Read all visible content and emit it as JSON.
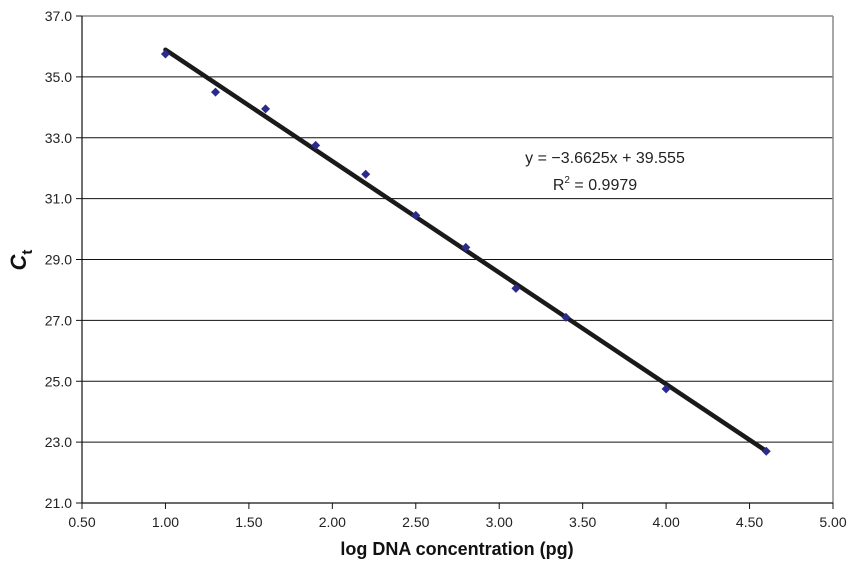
{
  "chart_data": {
    "type": "scatter",
    "title": "",
    "xlabel": "log DNA concentration (pg)",
    "ylabel_main": "C",
    "ylabel_sub": "t",
    "xlim": [
      0.5,
      5.0
    ],
    "ylim": [
      21.0,
      37.0
    ],
    "x_ticks": [
      "0.50",
      "1.00",
      "1.50",
      "2.00",
      "2.50",
      "3.00",
      "3.50",
      "4.00",
      "4.50",
      "5.00"
    ],
    "y_ticks": [
      "21.0",
      "23.0",
      "25.0",
      "27.0",
      "29.0",
      "31.0",
      "33.0",
      "35.0",
      "37.0"
    ],
    "grid": "horizontal",
    "legend": "none",
    "series": [
      {
        "x": [
          1.0,
          1.3,
          1.6,
          1.9,
          2.2,
          2.5,
          2.8,
          3.1,
          3.4,
          4.0,
          4.6
        ],
        "y": [
          35.75,
          34.5,
          33.95,
          32.75,
          31.8,
          30.45,
          29.4,
          28.05,
          27.1,
          24.75,
          22.7
        ],
        "marker": "diamond",
        "color": "#2b2b8c"
      }
    ],
    "trendline": {
      "slope": -3.6625,
      "intercept": 39.555,
      "x_range": [
        1.0,
        4.6
      ],
      "color": "#1a1a1a"
    },
    "annotations": {
      "equation_prefix": "y = −3.6625x + 39.555",
      "r2_prefix": "R",
      "r2_superscript": "2",
      "r2_value": " = 0.9979"
    },
    "colors": {
      "grid": "#111111",
      "frame": "#8a8a8a",
      "marker": "#2b2b8c",
      "trendline": "#1a1a1a"
    }
  }
}
